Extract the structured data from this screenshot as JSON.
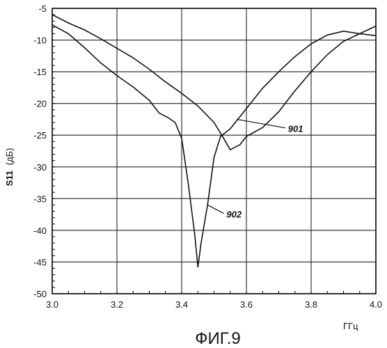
{
  "chart_data": {
    "type": "line",
    "title": "",
    "xlabel": "ГГц",
    "ylabel_bold": "S11",
    "ylabel_unit": "(дБ)",
    "xlim": [
      3.0,
      4.0
    ],
    "ylim": [
      -50,
      -5
    ],
    "xticks": [
      "3.0",
      "3.2",
      "3.4",
      "3.6",
      "3.8",
      "4.0"
    ],
    "yticks": [
      "-5",
      "-10",
      "-15",
      "-20",
      "-25",
      "-30",
      "-35",
      "-40",
      "-45",
      "-50"
    ],
    "grid": true,
    "caption": "ФИГ.9",
    "series": [
      {
        "name": "901",
        "x": [
          3.0,
          3.05,
          3.1,
          3.15,
          3.2,
          3.25,
          3.3,
          3.35,
          3.4,
          3.45,
          3.5,
          3.53,
          3.55,
          3.58,
          3.6,
          3.65,
          3.7,
          3.75,
          3.8,
          3.85,
          3.9,
          3.95,
          4.0
        ],
        "y": [
          -6.0,
          -7.3,
          -8.4,
          -9.8,
          -11.3,
          -12.8,
          -14.6,
          -16.6,
          -18.4,
          -20.4,
          -23.0,
          -25.5,
          -27.3,
          -26.5,
          -25.2,
          -23.8,
          -21.3,
          -18.0,
          -15.0,
          -12.3,
          -10.2,
          -9.0,
          -7.8
        ]
      },
      {
        "name": "902",
        "x": [
          3.0,
          3.05,
          3.1,
          3.15,
          3.2,
          3.25,
          3.3,
          3.33,
          3.36,
          3.38,
          3.4,
          3.42,
          3.44,
          3.45,
          3.46,
          3.48,
          3.5,
          3.52,
          3.55,
          3.6,
          3.65,
          3.7,
          3.75,
          3.8,
          3.85,
          3.9,
          3.95,
          4.0
        ],
        "y": [
          -7.6,
          -9.0,
          -11.2,
          -13.6,
          -15.6,
          -17.4,
          -19.5,
          -21.5,
          -22.3,
          -23.0,
          -25.5,
          -32.5,
          -40.5,
          -45.8,
          -42.0,
          -36.0,
          -28.5,
          -25.2,
          -24.0,
          -20.8,
          -17.6,
          -15.0,
          -12.6,
          -10.6,
          -9.2,
          -8.6,
          -9.0,
          -9.3
        ]
      }
    ],
    "annotations": [
      {
        "text": "901",
        "x": 3.57,
        "y": -22.5,
        "label_x": 3.75,
        "label_y": -24.5
      },
      {
        "text": "902",
        "x": 3.48,
        "y": -36.0,
        "label_x": 3.56,
        "label_y": -38.0
      }
    ]
  }
}
